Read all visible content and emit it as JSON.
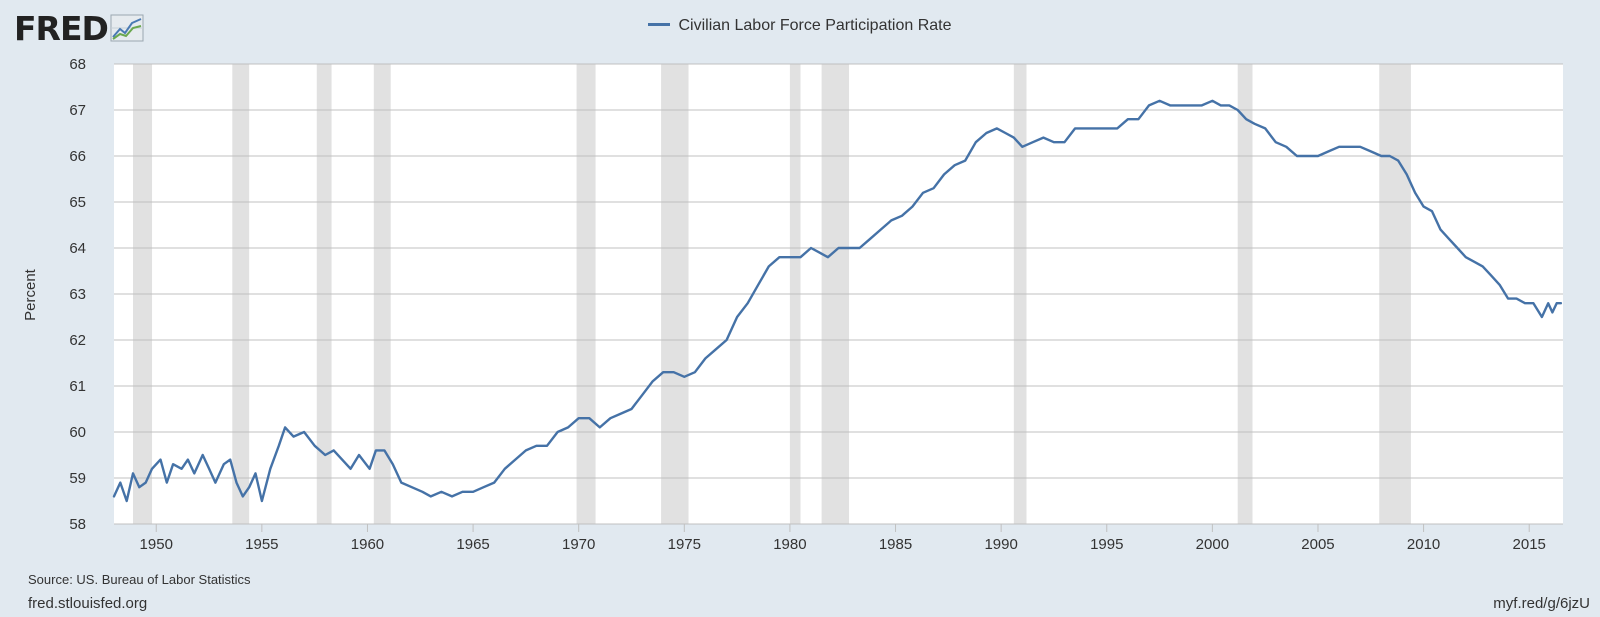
{
  "header": {
    "logo_text": "FRED",
    "logo_icon": "fred-chart-icon",
    "legend_label": "Civilian Labor Force Participation Rate"
  },
  "footer": {
    "source": "Source: US. Bureau of Labor Statistics",
    "site": "fred.stlouisfed.org",
    "shortlink": "myf.red/g/6jzU"
  },
  "colors": {
    "background": "#e1e9f0",
    "plot_background": "#ffffff",
    "series": "#4572a7",
    "recession": "#e1e1e1",
    "grid": "#c0c0c0"
  },
  "chart_data": {
    "type": "line",
    "title": "",
    "xlabel": "",
    "ylabel": "Percent",
    "xlim": [
      1948.0,
      2016.6
    ],
    "ylim": [
      58,
      68
    ],
    "y_ticks": [
      "58",
      "59",
      "60",
      "61",
      "62",
      "63",
      "64",
      "65",
      "66",
      "67",
      "68"
    ],
    "x_ticks": [
      "1950",
      "1955",
      "1960",
      "1965",
      "1970",
      "1975",
      "1980",
      "1985",
      "1990",
      "1995",
      "2000",
      "2005",
      "2010",
      "2015"
    ],
    "grid": true,
    "legend_position": "top-center",
    "recessions": [
      [
        1948.9,
        1949.8
      ],
      [
        1953.6,
        1954.4
      ],
      [
        1957.6,
        1958.3
      ],
      [
        1960.3,
        1961.1
      ],
      [
        1969.9,
        1970.8
      ],
      [
        1973.9,
        1975.2
      ],
      [
        1980.0,
        1980.5
      ],
      [
        1981.5,
        1982.8
      ],
      [
        1990.6,
        1991.2
      ],
      [
        2001.2,
        2001.9
      ],
      [
        2007.9,
        2009.4
      ]
    ],
    "series": [
      {
        "name": "Civilian Labor Force Participation Rate",
        "x": [
          1948.0,
          1948.3,
          1948.6,
          1948.9,
          1949.2,
          1949.5,
          1949.8,
          1950.2,
          1950.5,
          1950.8,
          1951.2,
          1951.5,
          1951.8,
          1952.2,
          1952.5,
          1952.8,
          1953.2,
          1953.5,
          1953.8,
          1954.1,
          1954.4,
          1954.7,
          1955.0,
          1955.4,
          1955.8,
          1956.1,
          1956.5,
          1957.0,
          1957.5,
          1958.0,
          1958.4,
          1958.8,
          1959.2,
          1959.6,
          1960.1,
          1960.4,
          1960.8,
          1961.2,
          1961.6,
          1962.1,
          1962.6,
          1963.0,
          1963.5,
          1964.0,
          1964.5,
          1965.0,
          1965.5,
          1966.0,
          1966.5,
          1967.0,
          1967.5,
          1968.0,
          1968.5,
          1969.0,
          1969.5,
          1970.0,
          1970.5,
          1971.0,
          1971.5,
          1972.0,
          1972.5,
          1973.0,
          1973.5,
          1974.0,
          1974.5,
          1975.0,
          1975.5,
          1976.0,
          1976.5,
          1977.0,
          1977.5,
          1978.0,
          1978.5,
          1979.0,
          1979.5,
          1980.0,
          1980.5,
          1981.0,
          1981.4,
          1981.8,
          1982.3,
          1982.8,
          1983.3,
          1983.8,
          1984.3,
          1984.8,
          1985.3,
          1985.8,
          1986.3,
          1986.8,
          1987.3,
          1987.8,
          1988.3,
          1988.8,
          1989.3,
          1989.8,
          1990.2,
          1990.6,
          1991.0,
          1991.5,
          1992.0,
          1992.5,
          1993.0,
          1993.5,
          1994.0,
          1994.5,
          1995.0,
          1995.5,
          1996.0,
          1996.5,
          1997.0,
          1997.5,
          1998.0,
          1998.5,
          1999.0,
          1999.5,
          2000.0,
          2000.4,
          2000.8,
          2001.2,
          2001.6,
          2002.0,
          2002.5,
          2003.0,
          2003.5,
          2004.0,
          2004.5,
          2005.0,
          2005.5,
          2006.0,
          2006.5,
          2007.0,
          2007.5,
          2008.0,
          2008.4,
          2008.8,
          2009.2,
          2009.6,
          2010.0,
          2010.4,
          2010.8,
          2011.2,
          2011.6,
          2012.0,
          2012.4,
          2012.8,
          2013.2,
          2013.6,
          2014.0,
          2014.4,
          2014.8,
          2015.2,
          2015.6,
          2015.9,
          2016.1,
          2016.3,
          2016.5
        ],
        "values": [
          58.6,
          58.9,
          58.5,
          59.1,
          58.8,
          58.9,
          59.2,
          59.4,
          58.9,
          59.3,
          59.2,
          59.4,
          59.1,
          59.5,
          59.2,
          58.9,
          59.3,
          59.4,
          58.9,
          58.6,
          58.8,
          59.1,
          58.5,
          59.2,
          59.7,
          60.1,
          59.9,
          60.0,
          59.7,
          59.5,
          59.6,
          59.4,
          59.2,
          59.5,
          59.2,
          59.6,
          59.6,
          59.3,
          58.9,
          58.8,
          58.7,
          58.6,
          58.7,
          58.6,
          58.7,
          58.7,
          58.8,
          58.9,
          59.2,
          59.4,
          59.6,
          59.7,
          59.7,
          60.0,
          60.1,
          60.3,
          60.3,
          60.1,
          60.3,
          60.4,
          60.5,
          60.8,
          61.1,
          61.3,
          61.3,
          61.2,
          61.3,
          61.6,
          61.8,
          62.0,
          62.5,
          62.8,
          63.2,
          63.6,
          63.8,
          63.8,
          63.8,
          64.0,
          63.9,
          63.8,
          64.0,
          64.0,
          64.0,
          64.2,
          64.4,
          64.6,
          64.7,
          64.9,
          65.2,
          65.3,
          65.6,
          65.8,
          65.9,
          66.3,
          66.5,
          66.6,
          66.5,
          66.4,
          66.2,
          66.3,
          66.4,
          66.3,
          66.3,
          66.6,
          66.6,
          66.6,
          66.6,
          66.6,
          66.8,
          66.8,
          67.1,
          67.2,
          67.1,
          67.1,
          67.1,
          67.1,
          67.2,
          67.1,
          67.1,
          67.0,
          66.8,
          66.7,
          66.6,
          66.3,
          66.2,
          66.0,
          66.0,
          66.0,
          66.1,
          66.2,
          66.2,
          66.2,
          66.1,
          66.0,
          66.0,
          65.9,
          65.6,
          65.2,
          64.9,
          64.8,
          64.4,
          64.2,
          64.0,
          63.8,
          63.7,
          63.6,
          63.4,
          63.2,
          62.9,
          62.9,
          62.8,
          62.8,
          62.5,
          62.8,
          62.6,
          62.8,
          62.8
        ]
      }
    ]
  }
}
